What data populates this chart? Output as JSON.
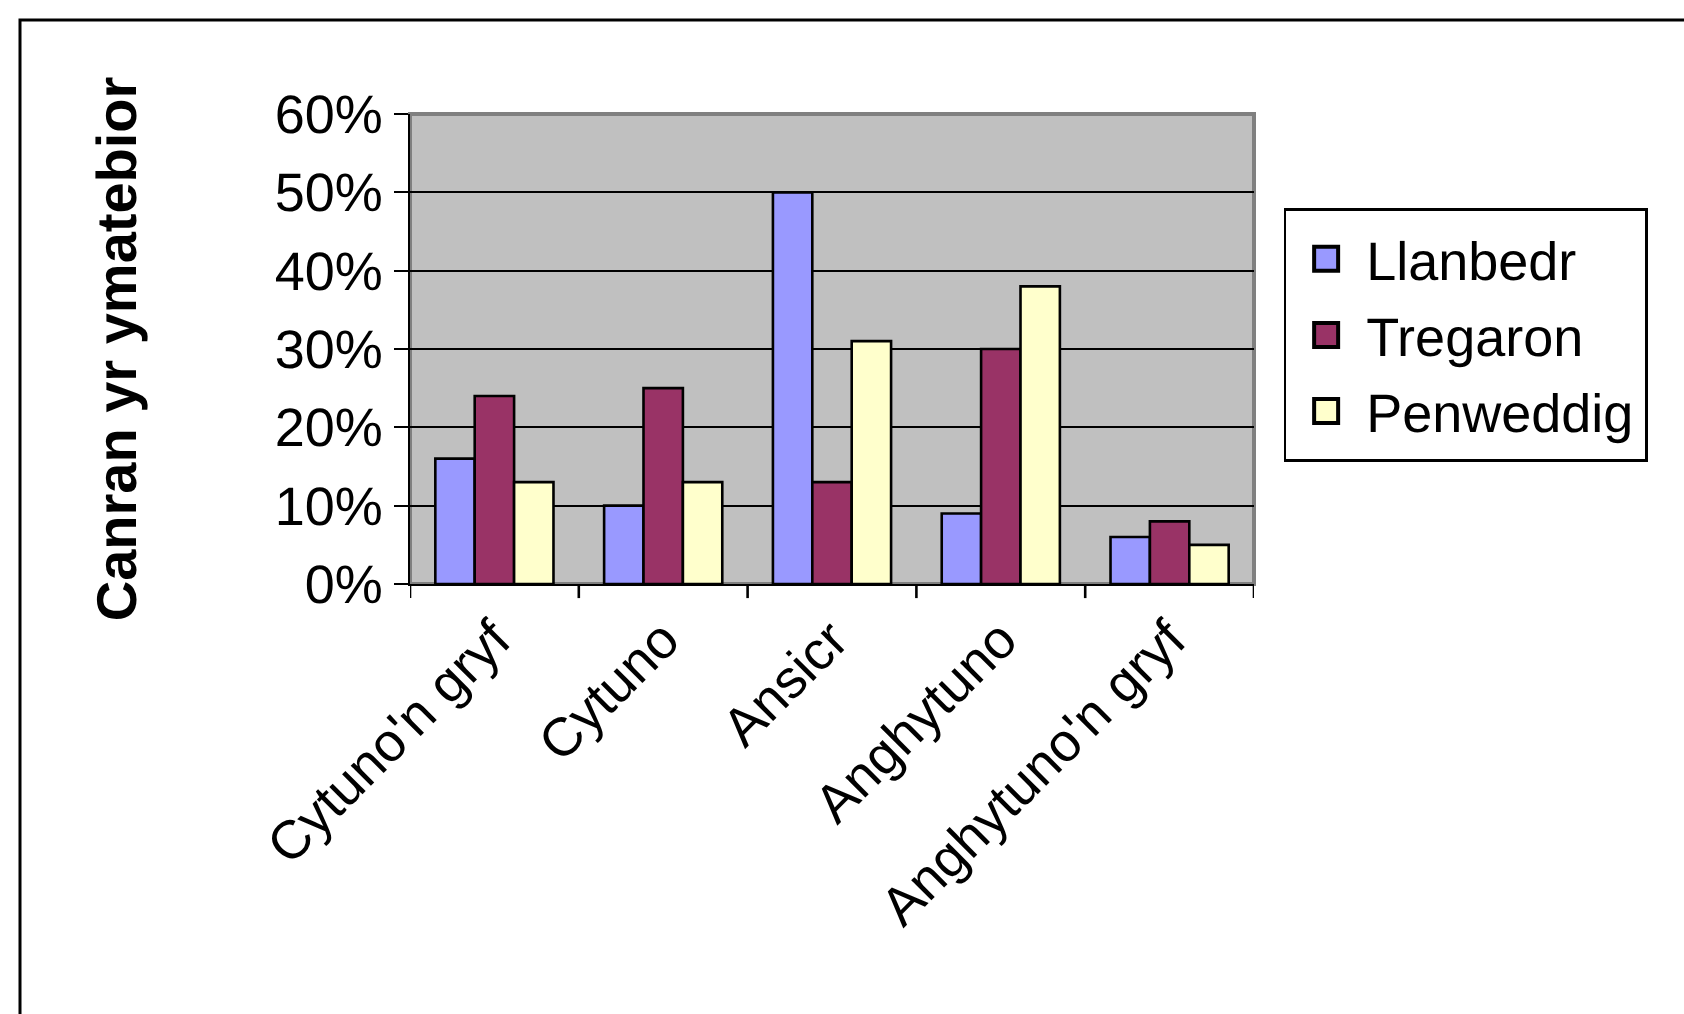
{
  "chart_data": {
    "type": "bar",
    "ylabel": "Canran yr ymatebior",
    "categories": [
      "Cytuno'n gryf",
      "Cytuno",
      "Ansicr",
      "Anghytuno",
      "Anghytuno'n gryf"
    ],
    "series": [
      {
        "name": "Llanbedr",
        "color": "#9999ff",
        "values": [
          16,
          10,
          50,
          9,
          6
        ]
      },
      {
        "name": "Tregaron",
        "color": "#993366",
        "values": [
          24,
          25,
          13,
          30,
          8
        ]
      },
      {
        "name": "Penweddig",
        "color": "#ffffcc",
        "values": [
          13,
          13,
          31,
          38,
          5
        ]
      }
    ],
    "ylim": [
      0,
      60
    ],
    "yticks": [
      {
        "value": 0,
        "label": "0%"
      },
      {
        "value": 10,
        "label": "10%"
      },
      {
        "value": 20,
        "label": "20%"
      },
      {
        "value": 30,
        "label": "30%"
      },
      {
        "value": 40,
        "label": "40%"
      },
      {
        "value": 50,
        "label": "50%"
      },
      {
        "value": 60,
        "label": "60%"
      }
    ],
    "grid": "y",
    "legend": "right"
  }
}
